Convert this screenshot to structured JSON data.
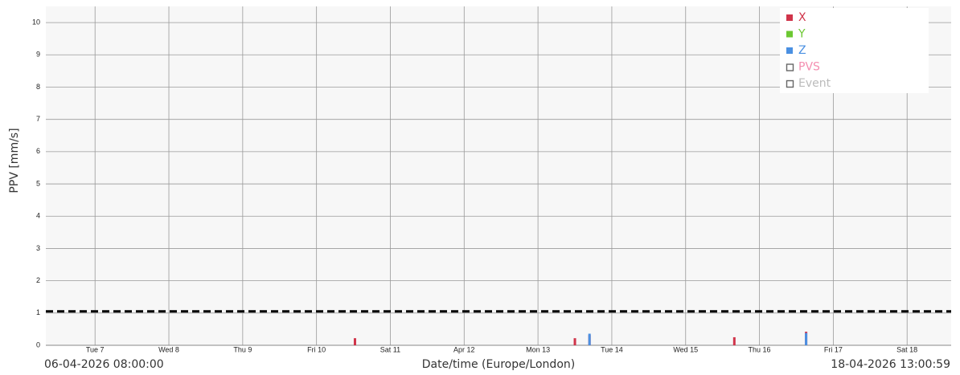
{
  "chart_data": {
    "type": "bar",
    "y_label": "PPV [mm/s]",
    "x_label": "Date/time (Europe/London)",
    "xlim": [
      "06-04-2026 08:00:00",
      "18-04-2026 13:00:59"
    ],
    "xticks": [
      {
        "value": "07-04-2026 00:00:00",
        "label": "Tue 7"
      },
      {
        "value": "08-04-2026 00:00:00",
        "label": "Wed 8"
      },
      {
        "value": "09-04-2026 00:00:00",
        "label": "Thu 9"
      },
      {
        "value": "10-04-2026 00:00:00",
        "label": "Fri 10"
      },
      {
        "value": "11-04-2026 00:00:00",
        "label": "Sat 11"
      },
      {
        "value": "12-04-2026 00:00:00",
        "label": "Apr 12"
      },
      {
        "value": "13-04-2026 00:00:00",
        "label": "Mon 13"
      },
      {
        "value": "14-04-2026 00:00:00",
        "label": "Tue 14"
      },
      {
        "value": "15-04-2026 00:00:00",
        "label": "Wed 15"
      },
      {
        "value": "16-04-2026 00:00:00",
        "label": "Thu 16"
      },
      {
        "value": "17-04-2026 00:00:00",
        "label": "Fri 17"
      },
      {
        "value": "18-04-2026 00:00:00",
        "label": "Sat 18"
      }
    ],
    "ylim": [
      0,
      10.5
    ],
    "yticks": [
      0,
      1,
      2,
      3,
      4,
      5,
      6,
      7,
      8,
      9,
      10
    ],
    "grid": true,
    "x": [
      "10-04-2026 12:30:00",
      "13-04-2026 12:00:00",
      "13-04-2026 16:45:00",
      "15-04-2026 15:50:00",
      "16-04-2026 15:10:00"
    ],
    "series": [
      {
        "name": "X",
        "color": "#d0344a",
        "values": [
          0.22,
          0.22,
          0.32,
          0.25,
          0.42
        ]
      },
      {
        "name": "Y",
        "color": "#6cc832",
        "values": [
          null,
          null,
          null,
          null,
          null
        ]
      },
      {
        "name": "Z",
        "color": "#4a90e2",
        "values": [
          null,
          null,
          0.36,
          null,
          0.38
        ]
      }
    ],
    "legend_extra": [
      {
        "name": "PVS",
        "color": "#f48fb1"
      },
      {
        "name": "Event",
        "color": "#bbbbbb"
      }
    ],
    "legend": "top-right",
    "reference_line": {
      "value": 1.05,
      "color": "#000000"
    }
  }
}
